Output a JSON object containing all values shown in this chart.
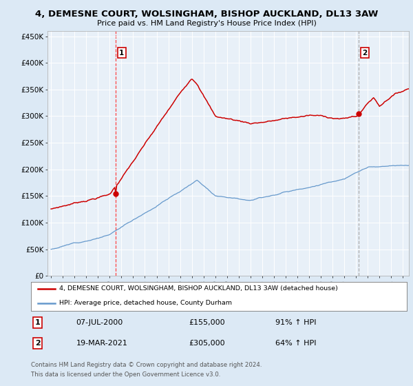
{
  "title": "4, DEMESNE COURT, WOLSINGHAM, BISHOP AUCKLAND, DL13 3AW",
  "subtitle": "Price paid vs. HM Land Registry's House Price Index (HPI)",
  "legend_line1": "4, DEMESNE COURT, WOLSINGHAM, BISHOP AUCKLAND, DL13 3AW (detached house)",
  "legend_line2": "HPI: Average price, detached house, County Durham",
  "transaction1_date": "07-JUL-2000",
  "transaction1_price": "£155,000",
  "transaction1_hpi": "91% ↑ HPI",
  "transaction2_date": "19-MAR-2021",
  "transaction2_price": "£305,000",
  "transaction2_hpi": "64% ↑ HPI",
  "footer1": "Contains HM Land Registry data © Crown copyright and database right 2024.",
  "footer2": "This data is licensed under the Open Government Licence v3.0.",
  "hpi_color": "#6699cc",
  "property_color": "#cc0000",
  "dashed_line1_color": "#ff4444",
  "dashed_line2_color": "#aaaaaa",
  "background_color": "#dce9f5",
  "plot_bg_color": "#e8f0f8",
  "ylim": [
    0,
    460000
  ],
  "yticks": [
    0,
    50000,
    100000,
    150000,
    200000,
    250000,
    300000,
    350000,
    400000,
    450000
  ],
  "ytick_labels": [
    "£0",
    "£50K",
    "£100K",
    "£150K",
    "£200K",
    "£250K",
    "£300K",
    "£350K",
    "£400K",
    "£450K"
  ],
  "xmin": 1994.7,
  "xmax": 2025.5,
  "transaction1_year": 2000.52,
  "transaction2_year": 2021.21
}
